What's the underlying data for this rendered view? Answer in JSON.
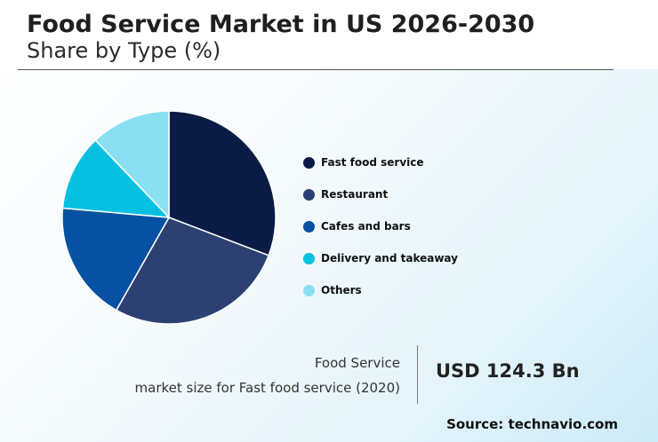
{
  "header": {
    "title": "Food Service Market in US 2026-2030",
    "subtitle": "Share by Type (%)"
  },
  "chart_data": {
    "type": "pie",
    "categories": [
      "Fast food service",
      "Restaurant",
      "Cafes and bars",
      "Delivery and takeaway",
      "Others"
    ],
    "values": [
      30.8,
      27.4,
      18.2,
      11.5,
      12.1
    ],
    "colors": [
      "#0a1c45",
      "#2c4172",
      "#0651a1",
      "#06c0e2",
      "#8ae0f2"
    ],
    "legend_position": "right"
  },
  "stats": {
    "line1": "Food Service",
    "line2": "market size for Fast food service (2020)",
    "value": "USD 124.3 Bn"
  },
  "footer": {
    "source": "Source: technavio.com"
  }
}
